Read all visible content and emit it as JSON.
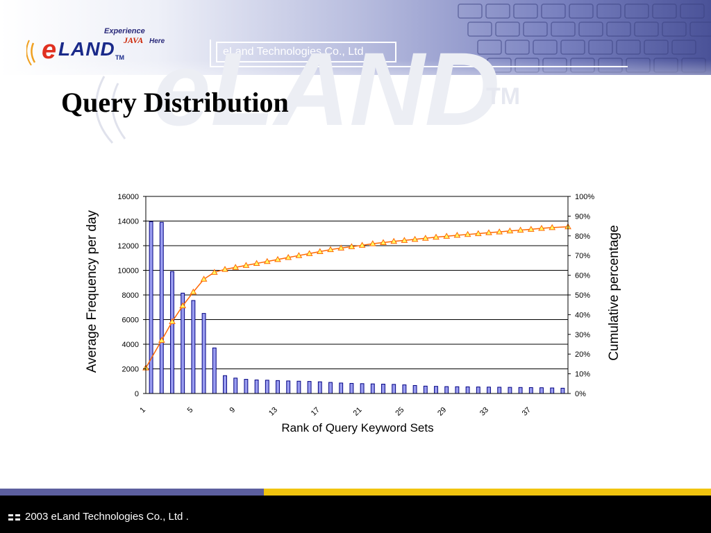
{
  "header": {
    "logo_main": "eLAND",
    "logo_tm": "TM",
    "logo_tagline_top": "Experience",
    "logo_tagline_java": "JAVA",
    "logo_tagline_bottom": "Here",
    "company_label": "eLand Technologies Co., Ltd ."
  },
  "page_title": "Query Distribution",
  "footer": {
    "text": "2003 eLand Technologies Co., Ltd ."
  },
  "colors": {
    "bar_fill": "#9a9df0",
    "bar_stroke": "#000080",
    "line": "#ff6600",
    "marker_fill": "#ffff66",
    "footer_accent_left": "#5c5f9e",
    "footer_accent_right": "#f1c40f"
  },
  "chart_data": {
    "type": "bar+line",
    "xlabel": "Rank of Query Keyword Sets",
    "ylabel": "Average Frequency per day",
    "y2label": "Cumulative percentage",
    "ylim": [
      0,
      16000
    ],
    "y2lim": [
      0,
      100
    ],
    "y_ticks": [
      "0",
      "2000",
      "4000",
      "6000",
      "8000",
      "10000",
      "12000",
      "14000",
      "16000"
    ],
    "y2_ticks": [
      "0%",
      "10%",
      "20%",
      "30%",
      "40%",
      "50%",
      "60%",
      "70%",
      "80%",
      "90%",
      "100%"
    ],
    "x_tick_labels": [
      "1",
      "5",
      "9",
      "13",
      "17",
      "21",
      "25",
      "29",
      "33",
      "37"
    ],
    "grid": "horizontal",
    "x": [
      1,
      2,
      3,
      4,
      5,
      6,
      7,
      8,
      9,
      10,
      11,
      12,
      13,
      14,
      15,
      16,
      17,
      18,
      19,
      20,
      21,
      22,
      23,
      24,
      25,
      26,
      27,
      28,
      29,
      30,
      31,
      32,
      33,
      34,
      35,
      36,
      37,
      38,
      39,
      40
    ],
    "series": [
      {
        "name": "Average Frequency per day",
        "kind": "bar",
        "axis": "left",
        "values": [
          13950,
          13900,
          9900,
          8150,
          7550,
          6500,
          3700,
          1450,
          1250,
          1150,
          1100,
          1080,
          1050,
          1020,
          1000,
          980,
          950,
          900,
          850,
          820,
          800,
          780,
          760,
          740,
          700,
          650,
          600,
          580,
          560,
          550,
          540,
          530,
          520,
          510,
          500,
          490,
          480,
          470,
          450,
          430
        ]
      },
      {
        "name": "Cumulative percentage",
        "kind": "line",
        "axis": "right",
        "values": [
          13,
          27,
          36.5,
          44.5,
          51.5,
          58,
          61.5,
          63,
          64,
          65,
          66,
          67,
          68,
          69,
          70,
          71,
          72,
          73,
          73.8,
          74.5,
          75.2,
          76,
          76.6,
          77.2,
          77.7,
          78.2,
          78.8,
          79.3,
          79.8,
          80.3,
          80.7,
          81.1,
          81.6,
          82,
          82.5,
          82.9,
          83.3,
          83.8,
          84.2,
          84.6
        ]
      }
    ]
  }
}
